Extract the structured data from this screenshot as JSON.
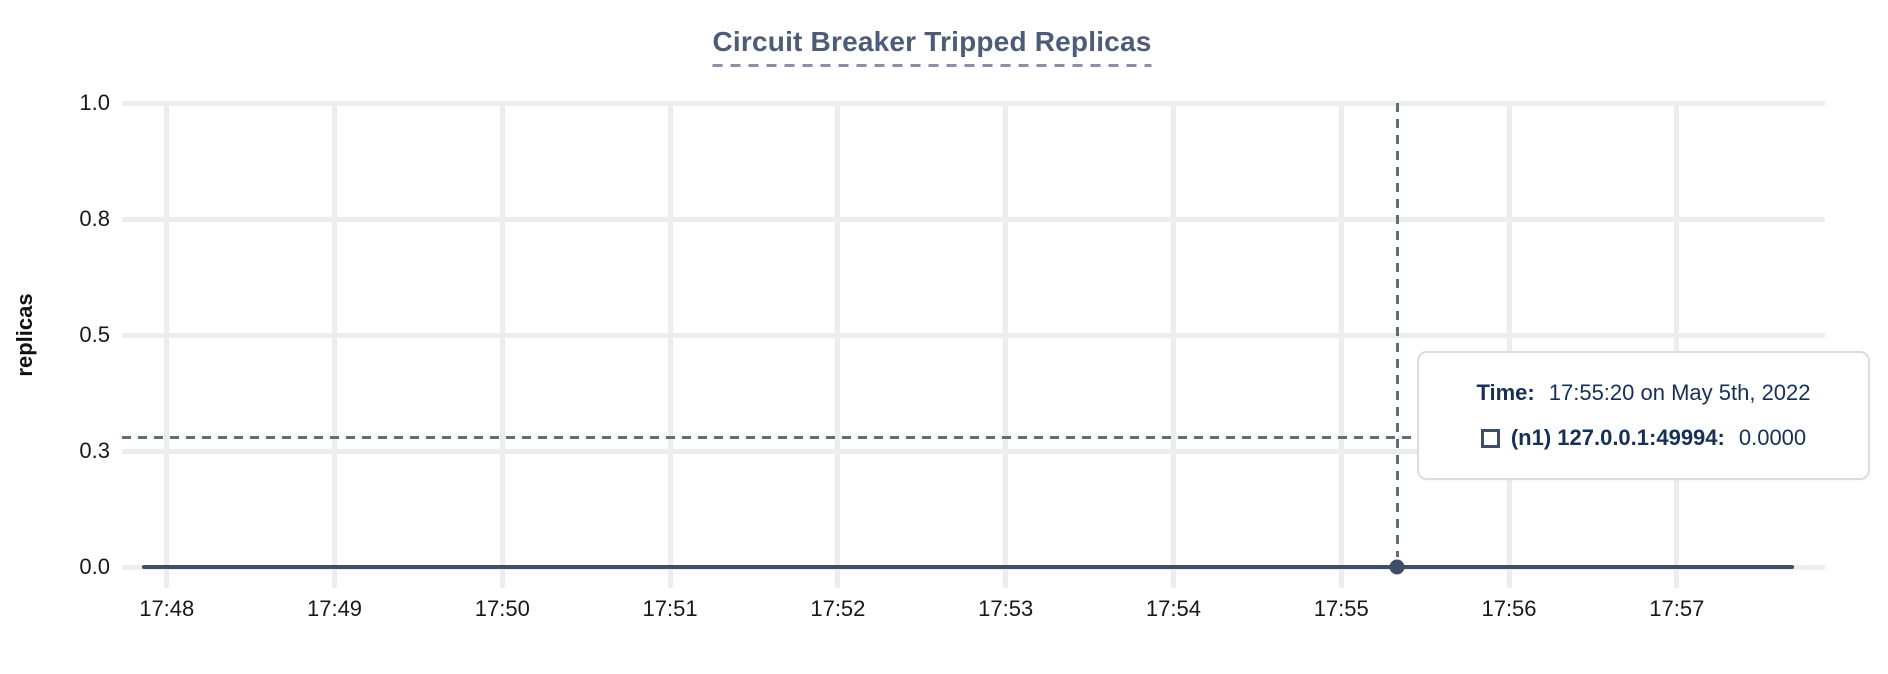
{
  "panel": {
    "y_axis_label": "replicas"
  },
  "colors": {
    "title": "#4d5c77",
    "title_underline": "#8792a8",
    "series_line": "#3e4e66",
    "crosshair": "#5c6d80",
    "gridline": "#ededed",
    "tick_text": "#16181d",
    "tooltip_text": "#163056",
    "tooltip_border": "#d9dde3",
    "background": "#ffffff"
  },
  "chart_data": {
    "type": "line",
    "title": "Circuit Breaker Tripped Replicas",
    "xlabel": "",
    "ylabel": "replicas",
    "ylim": [
      0,
      1
    ],
    "grid": true,
    "x_ticks": [
      "17:48",
      "17:49",
      "17:50",
      "17:51",
      "17:52",
      "17:53",
      "17:54",
      "17:55",
      "17:56",
      "17:57"
    ],
    "y_ticks": [
      {
        "label": "1.0",
        "value": 1.0
      },
      {
        "label": "0.8",
        "value": 0.75
      },
      {
        "label": "0.5",
        "value": 0.5
      },
      {
        "label": "0.3",
        "value": 0.25
      },
      {
        "label": "0.0",
        "value": 0.0
      }
    ],
    "x_axis_window": {
      "start": "17:47:44",
      "end": "17:57:53"
    },
    "series": [
      {
        "name": "(n1) 127.0.0.1:49994",
        "value": 0.0,
        "start": "17:47:51",
        "end": "17:57:42"
      }
    ],
    "crosshair": {
      "time": "17:55:20",
      "y_value": 0.28,
      "marker_series": 0
    },
    "tooltip": {
      "time_label": "Time:",
      "time_value": "17:55:20 on May 5th, 2022",
      "series_label": "(n1) 127.0.0.1:49994:",
      "series_value": "0.0000"
    }
  }
}
